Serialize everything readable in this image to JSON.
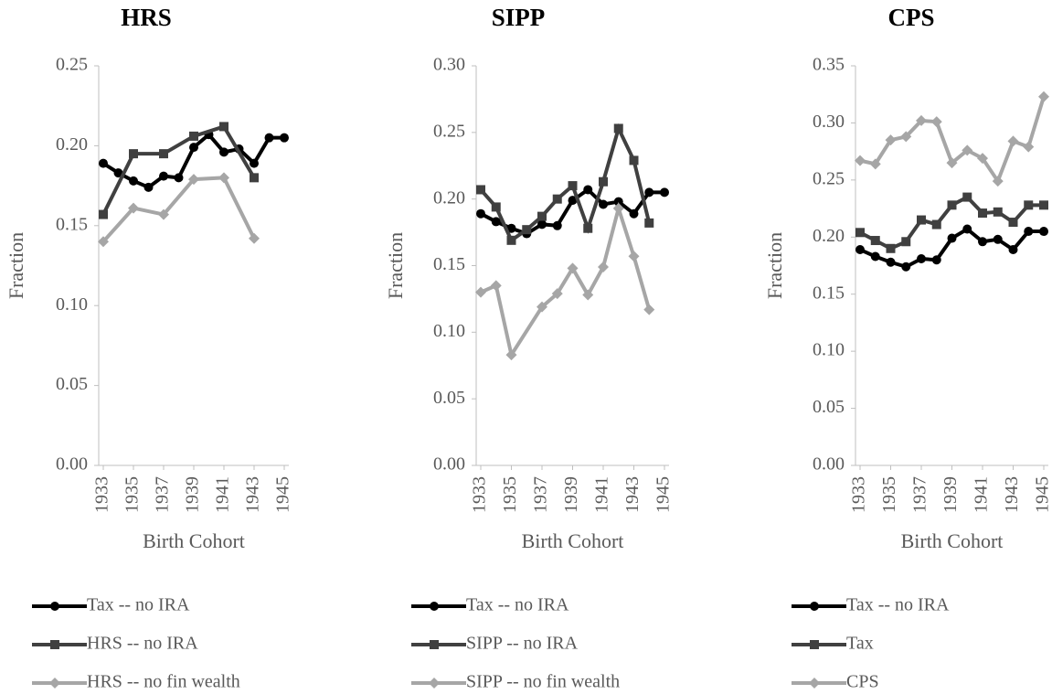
{
  "chart_data": [
    {
      "type": "line",
      "title": "HRS",
      "xlabel": "Birth Cohort",
      "ylabel": "Fraction",
      "xlim": [
        1933,
        1945
      ],
      "xticks": [
        1933,
        1935,
        1937,
        1939,
        1941,
        1943,
        1945
      ],
      "ylim": [
        0,
        0.25
      ],
      "yticks": [
        {
          "value": 0,
          "label": "0.00"
        },
        {
          "value": 0.05,
          "label": "0.05"
        },
        {
          "value": 0.1,
          "label": "0.10"
        },
        {
          "value": 0.15,
          "label": "0.15"
        },
        {
          "value": 0.2,
          "label": "0.20"
        },
        {
          "value": 0.25,
          "label": "0.25"
        }
      ],
      "series": [
        {
          "name": "Tax -- no IRA",
          "color": "#000000",
          "marker": "circle",
          "x": [
            1933,
            1934,
            1935,
            1936,
            1937,
            1938,
            1939,
            1940,
            1941,
            1942,
            1943,
            1944,
            1945
          ],
          "values": [
            0.189,
            0.183,
            0.178,
            0.174,
            0.181,
            0.18,
            0.199,
            0.207,
            0.196,
            0.198,
            0.189,
            0.205,
            0.205
          ]
        },
        {
          "name": "HRS -- no IRA",
          "color": "#404040",
          "marker": "square",
          "x": [
            1933,
            1935,
            1937,
            1939,
            1941,
            1943
          ],
          "values": [
            0.157,
            0.195,
            0.195,
            0.206,
            0.212,
            0.18
          ]
        },
        {
          "name": "HRS -- no fin wealth",
          "color": "#a6a6a6",
          "marker": "diamond",
          "x": [
            1933,
            1935,
            1937,
            1939,
            1941,
            1943
          ],
          "values": [
            0.14,
            0.161,
            0.157,
            0.179,
            0.18,
            0.142
          ]
        }
      ]
    },
    {
      "type": "line",
      "title": "SIPP",
      "xlabel": "Birth Cohort",
      "ylabel": "Fraction",
      "xlim": [
        1933,
        1945
      ],
      "xticks": [
        1933,
        1935,
        1937,
        1939,
        1941,
        1943,
        1945
      ],
      "ylim": [
        0,
        0.3
      ],
      "yticks": [
        {
          "value": 0,
          "label": "0.00"
        },
        {
          "value": 0.05,
          "label": "0.05"
        },
        {
          "value": 0.1,
          "label": "0.10"
        },
        {
          "value": 0.15,
          "label": "0.15"
        },
        {
          "value": 0.2,
          "label": "0.20"
        },
        {
          "value": 0.25,
          "label": "0.25"
        },
        {
          "value": 0.3,
          "label": "0.30"
        }
      ],
      "series": [
        {
          "name": "Tax -- no IRA",
          "color": "#000000",
          "marker": "circle",
          "x": [
            1933,
            1934,
            1935,
            1936,
            1937,
            1938,
            1939,
            1940,
            1941,
            1942,
            1943,
            1944,
            1945
          ],
          "values": [
            0.189,
            0.183,
            0.178,
            0.174,
            0.181,
            0.18,
            0.199,
            0.207,
            0.196,
            0.198,
            0.189,
            0.205,
            0.205
          ]
        },
        {
          "name": "SIPP -- no IRA",
          "color": "#404040",
          "marker": "square",
          "x": [
            1933,
            1934,
            1935,
            1936,
            1937,
            1938,
            1939,
            1940,
            1941,
            1942,
            1943,
            1944
          ],
          "values": [
            0.207,
            0.194,
            0.169,
            0.177,
            0.187,
            0.2,
            0.21,
            0.178,
            0.213,
            0.253,
            0.229,
            0.182
          ]
        },
        {
          "name": "SIPP -- no fin wealth",
          "color": "#a6a6a6",
          "marker": "diamond",
          "x": [
            1933,
            1934,
            1935,
            1937,
            1938,
            1939,
            1940,
            1941,
            1942,
            1943,
            1944
          ],
          "values": [
            0.13,
            0.135,
            0.083,
            0.119,
            0.129,
            0.148,
            0.128,
            0.149,
            0.193,
            0.157,
            0.117
          ]
        }
      ]
    },
    {
      "type": "line",
      "title": "CPS",
      "xlabel": "Birth Cohort",
      "ylabel": "Fraction",
      "xlim": [
        1933,
        1945
      ],
      "xticks": [
        1933,
        1935,
        1937,
        1939,
        1941,
        1943,
        1945
      ],
      "ylim": [
        0,
        0.35
      ],
      "yticks": [
        {
          "value": 0,
          "label": "0.00"
        },
        {
          "value": 0.05,
          "label": "0.05"
        },
        {
          "value": 0.1,
          "label": "0.10"
        },
        {
          "value": 0.15,
          "label": "0.15"
        },
        {
          "value": 0.2,
          "label": "0.20"
        },
        {
          "value": 0.25,
          "label": "0.25"
        },
        {
          "value": 0.3,
          "label": "0.30"
        },
        {
          "value": 0.35,
          "label": "0.35"
        }
      ],
      "series": [
        {
          "name": "Tax -- no IRA",
          "color": "#000000",
          "marker": "circle",
          "x": [
            1933,
            1934,
            1935,
            1936,
            1937,
            1938,
            1939,
            1940,
            1941,
            1942,
            1943,
            1944,
            1945
          ],
          "values": [
            0.189,
            0.183,
            0.178,
            0.174,
            0.181,
            0.18,
            0.199,
            0.207,
            0.196,
            0.198,
            0.189,
            0.205,
            0.205
          ]
        },
        {
          "name": "Tax",
          "color": "#404040",
          "marker": "square",
          "x": [
            1933,
            1934,
            1935,
            1936,
            1937,
            1938,
            1939,
            1940,
            1941,
            1942,
            1943,
            1944,
            1945
          ],
          "values": [
            0.204,
            0.197,
            0.19,
            0.196,
            0.215,
            0.211,
            0.228,
            0.235,
            0.221,
            0.222,
            0.213,
            0.228,
            0.228
          ]
        },
        {
          "name": "CPS",
          "color": "#a6a6a6",
          "marker": "diamond",
          "x": [
            1933,
            1934,
            1935,
            1936,
            1937,
            1938,
            1939,
            1940,
            1941,
            1942,
            1943,
            1944,
            1945
          ],
          "values": [
            0.267,
            0.264,
            0.285,
            0.288,
            0.302,
            0.301,
            0.265,
            0.276,
            0.269,
            0.249,
            0.284,
            0.279,
            0.323
          ]
        }
      ]
    }
  ]
}
